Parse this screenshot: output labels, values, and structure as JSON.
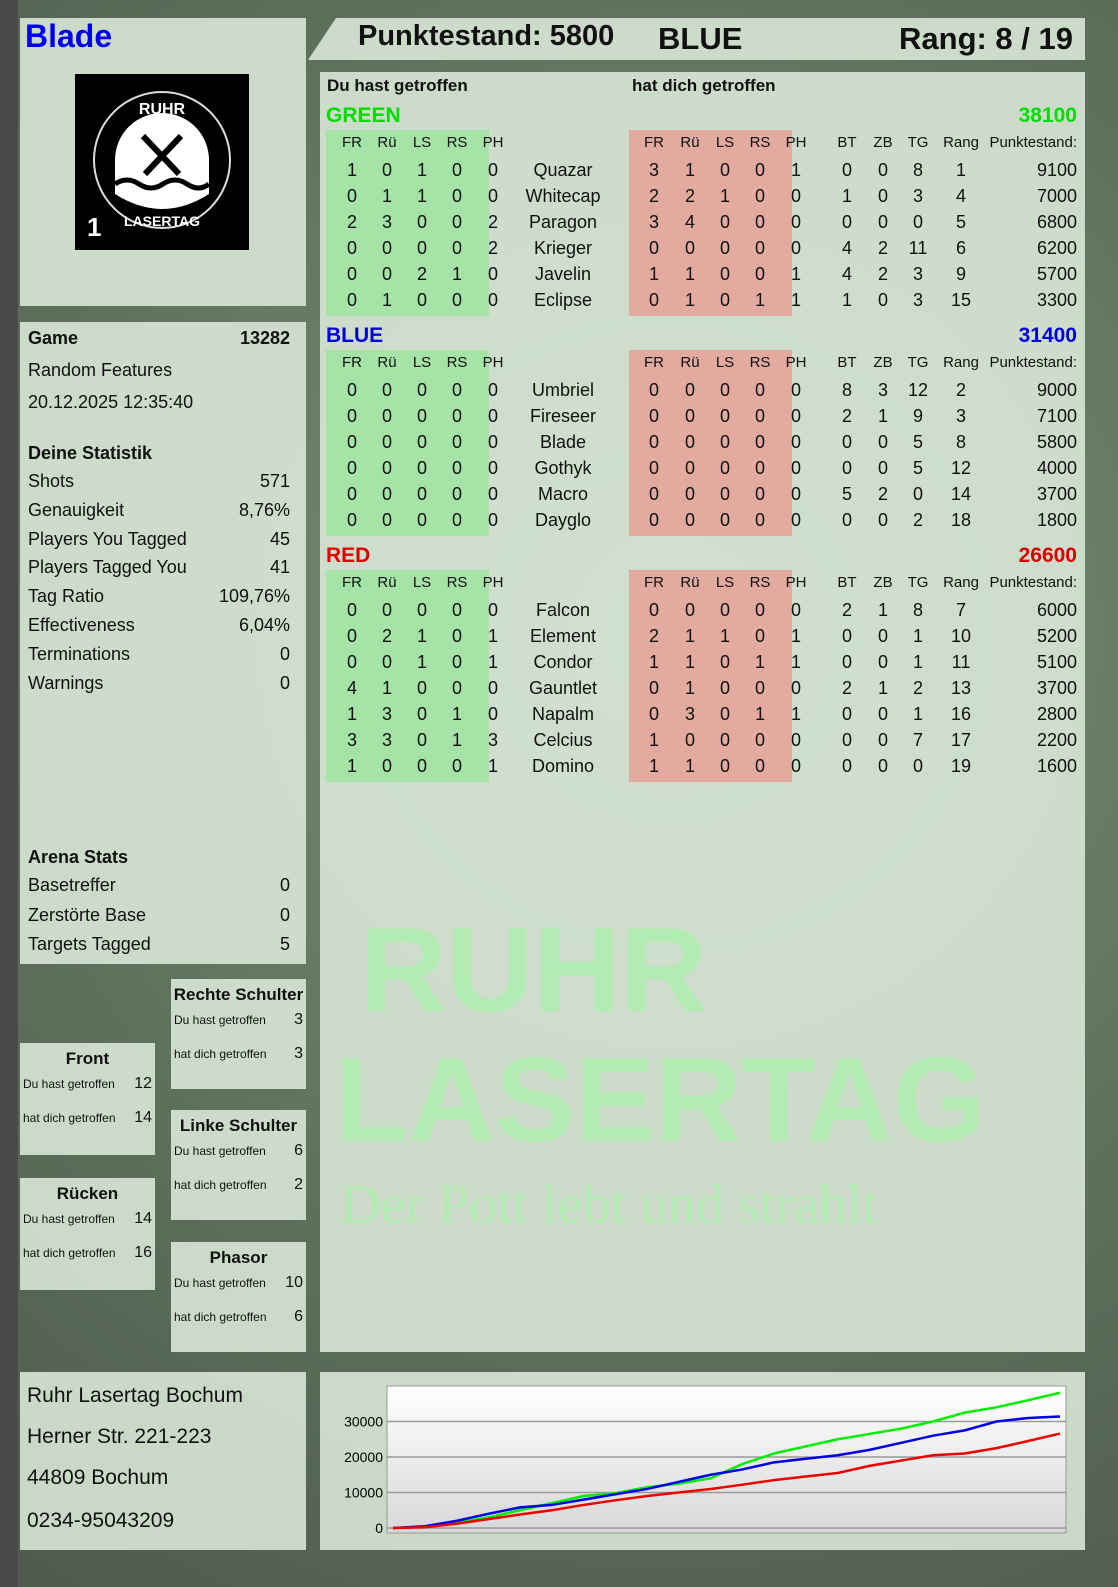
{
  "player": {
    "name": "Blade",
    "logo_text": "RUHR LASERTAG",
    "logo_number": "1"
  },
  "header": {
    "score_label": "Punktestand: 5800",
    "team": "BLUE",
    "rank_label": "Rang: 8 / 19"
  },
  "watermark": {
    "line1": "RUHR",
    "line2": "LASERTAG",
    "slogan": "Der Pott lebt und strahlt"
  },
  "game": {
    "label": "Game",
    "id": "13282",
    "mode": "Random Features",
    "datetime": "20.12.2025 12:35:40"
  },
  "stats": {
    "title": "Deine Statistik",
    "items": [
      {
        "label": "Shots",
        "value": "571"
      },
      {
        "label": "Genauigkeit",
        "value": "8,76%"
      },
      {
        "label": "Players You Tagged",
        "value": "45"
      },
      {
        "label": "Players Tagged You",
        "value": "41"
      },
      {
        "label": "Tag Ratio",
        "value": "109,76%"
      },
      {
        "label": "Effectiveness",
        "value": "6,04%"
      },
      {
        "label": "Terminations",
        "value": "0"
      },
      {
        "label": "Warnings",
        "value": "0"
      }
    ]
  },
  "arena": {
    "title": "Arena Stats",
    "items": [
      {
        "label": "Basetreffer",
        "value": "0"
      },
      {
        "label": "Zerstörte Base",
        "value": "0"
      },
      {
        "label": "Targets Tagged",
        "value": "5"
      }
    ]
  },
  "zones": [
    {
      "name": "Rechte Schulter",
      "you_hit_label": "Du hast getroffen",
      "you_hit": "3",
      "hit_you_label": "hat dich getroffen",
      "hit_you": "3"
    },
    {
      "name": "Front",
      "you_hit_label": "Du hast getroffen",
      "you_hit": "12",
      "hit_you_label": "hat dich getroffen",
      "hit_you": "14"
    },
    {
      "name": "Linke Schulter",
      "you_hit_label": "Du hast getroffen",
      "you_hit": "6",
      "hit_you_label": "hat dich getroffen",
      "hit_you": "2"
    },
    {
      "name": "Rücken",
      "you_hit_label": "Du hast getroffen",
      "you_hit": "14",
      "hit_you_label": "hat dich getroffen",
      "hit_you": "16"
    },
    {
      "name": "Phasor",
      "you_hit_label": "Du hast getroffen",
      "you_hit": "10",
      "hit_you_label": "hat dich getroffen",
      "hit_you": "6"
    }
  ],
  "address": {
    "name": "Ruhr Lasertag Bochum",
    "street": "Herner Str. 221-223",
    "city": "44809 Bochum",
    "phone": "0234-95043209"
  },
  "table": {
    "you_hit_title": "Du hast getroffen",
    "hit_you_title": "hat dich getroffen",
    "hit_cols": [
      "FR",
      "Rü",
      "LS",
      "RS",
      "PH"
    ],
    "stat_cols": [
      "BT",
      "ZB",
      "TG",
      "Rang"
    ],
    "score_col": "Punktestand:",
    "teams": [
      {
        "name": "GREEN",
        "score": "38100",
        "color": "#00dd00",
        "players": [
          {
            "name": "Quazar",
            "you_hit": [
              1,
              0,
              1,
              0,
              0
            ],
            "hit_you": [
              3,
              1,
              0,
              0,
              1
            ],
            "stats": [
              0,
              0,
              8,
              1
            ],
            "score": 9100
          },
          {
            "name": "Whitecap",
            "you_hit": [
              0,
              1,
              1,
              0,
              0
            ],
            "hit_you": [
              2,
              2,
              1,
              0,
              0
            ],
            "stats": [
              1,
              0,
              3,
              4
            ],
            "score": 7000
          },
          {
            "name": "Paragon",
            "you_hit": [
              2,
              3,
              0,
              0,
              2
            ],
            "hit_you": [
              3,
              4,
              0,
              0,
              0
            ],
            "stats": [
              0,
              0,
              0,
              5
            ],
            "score": 6800
          },
          {
            "name": "Krieger",
            "you_hit": [
              0,
              0,
              0,
              0,
              2
            ],
            "hit_you": [
              0,
              0,
              0,
              0,
              0
            ],
            "stats": [
              4,
              2,
              11,
              6
            ],
            "score": 6200
          },
          {
            "name": "Javelin",
            "you_hit": [
              0,
              0,
              2,
              1,
              0
            ],
            "hit_you": [
              1,
              1,
              0,
              0,
              1
            ],
            "stats": [
              4,
              2,
              3,
              9
            ],
            "score": 5700
          },
          {
            "name": "Eclipse",
            "you_hit": [
              0,
              1,
              0,
              0,
              0
            ],
            "hit_you": [
              0,
              1,
              0,
              1,
              1
            ],
            "stats": [
              1,
              0,
              3,
              15
            ],
            "score": 3300
          }
        ]
      },
      {
        "name": "BLUE",
        "score": "31400",
        "color": "#0000dd",
        "players": [
          {
            "name": "Umbriel",
            "you_hit": [
              0,
              0,
              0,
              0,
              0
            ],
            "hit_you": [
              0,
              0,
              0,
              0,
              0
            ],
            "stats": [
              8,
              3,
              12,
              2
            ],
            "score": 9000
          },
          {
            "name": "Fireseer",
            "you_hit": [
              0,
              0,
              0,
              0,
              0
            ],
            "hit_you": [
              0,
              0,
              0,
              0,
              0
            ],
            "stats": [
              2,
              1,
              9,
              3
            ],
            "score": 7100
          },
          {
            "name": "Blade",
            "you_hit": [
              0,
              0,
              0,
              0,
              0
            ],
            "hit_you": [
              0,
              0,
              0,
              0,
              0
            ],
            "stats": [
              0,
              0,
              5,
              8
            ],
            "score": 5800
          },
          {
            "name": "Gothyk",
            "you_hit": [
              0,
              0,
              0,
              0,
              0
            ],
            "hit_you": [
              0,
              0,
              0,
              0,
              0
            ],
            "stats": [
              0,
              0,
              5,
              12
            ],
            "score": 4000
          },
          {
            "name": "Macro",
            "you_hit": [
              0,
              0,
              0,
              0,
              0
            ],
            "hit_you": [
              0,
              0,
              0,
              0,
              0
            ],
            "stats": [
              5,
              2,
              0,
              14
            ],
            "score": 3700
          },
          {
            "name": "Dayglo",
            "you_hit": [
              0,
              0,
              0,
              0,
              0
            ],
            "hit_you": [
              0,
              0,
              0,
              0,
              0
            ],
            "stats": [
              0,
              0,
              2,
              18
            ],
            "score": 1800
          }
        ]
      },
      {
        "name": "RED",
        "score": "26600",
        "color": "#dd0000",
        "players": [
          {
            "name": "Falcon",
            "you_hit": [
              0,
              0,
              0,
              0,
              0
            ],
            "hit_you": [
              0,
              0,
              0,
              0,
              0
            ],
            "stats": [
              2,
              1,
              8,
              7
            ],
            "score": 6000
          },
          {
            "name": "Element",
            "you_hit": [
              0,
              2,
              1,
              0,
              1
            ],
            "hit_you": [
              2,
              1,
              1,
              0,
              1
            ],
            "stats": [
              0,
              0,
              1,
              10
            ],
            "score": 5200
          },
          {
            "name": "Condor",
            "you_hit": [
              0,
              0,
              1,
              0,
              1
            ],
            "hit_you": [
              1,
              1,
              0,
              1,
              1
            ],
            "stats": [
              0,
              0,
              1,
              11
            ],
            "score": 5100
          },
          {
            "name": "Gauntlet",
            "you_hit": [
              4,
              1,
              0,
              0,
              0
            ],
            "hit_you": [
              0,
              1,
              0,
              0,
              0
            ],
            "stats": [
              2,
              1,
              2,
              13
            ],
            "score": 3700
          },
          {
            "name": "Napalm",
            "you_hit": [
              1,
              3,
              0,
              1,
              0
            ],
            "hit_you": [
              0,
              3,
              0,
              1,
              1
            ],
            "stats": [
              0,
              0,
              1,
              16
            ],
            "score": 2800
          },
          {
            "name": "Celcius",
            "you_hit": [
              3,
              3,
              0,
              1,
              3
            ],
            "hit_you": [
              1,
              0,
              0,
              0,
              0
            ],
            "stats": [
              0,
              0,
              7,
              17
            ],
            "score": 2200
          },
          {
            "name": "Domino",
            "you_hit": [
              1,
              0,
              0,
              0,
              1
            ],
            "hit_you": [
              1,
              1,
              0,
              0,
              0
            ],
            "stats": [
              0,
              0,
              0,
              19
            ],
            "score": 1600
          }
        ]
      }
    ]
  },
  "chart_data": {
    "type": "line",
    "ylim": [
      0,
      40000
    ],
    "yticks": [
      0,
      10000,
      20000,
      30000
    ],
    "grid": true,
    "series": [
      {
        "color": "#00ee00",
        "values": [
          0,
          300,
          1500,
          3000,
          5000,
          7000,
          9000,
          9800,
          11500,
          12500,
          14000,
          18000,
          21000,
          23000,
          25000,
          26500,
          28000,
          30000,
          32500,
          34000,
          36000,
          38100
        ]
      },
      {
        "color": "#0000ee",
        "values": [
          0,
          500,
          2000,
          4000,
          5800,
          6500,
          8000,
          9500,
          11000,
          13000,
          15000,
          16500,
          18500,
          19500,
          20500,
          22000,
          24000,
          26000,
          27500,
          30000,
          31000,
          31400
        ]
      },
      {
        "color": "#ee0000",
        "values": [
          0,
          200,
          1200,
          2500,
          3800,
          5000,
          6500,
          7800,
          9000,
          10000,
          11000,
          12200,
          13500,
          14500,
          15500,
          17500,
          19000,
          20500,
          21000,
          22500,
          24500,
          26600
        ]
      }
    ]
  }
}
